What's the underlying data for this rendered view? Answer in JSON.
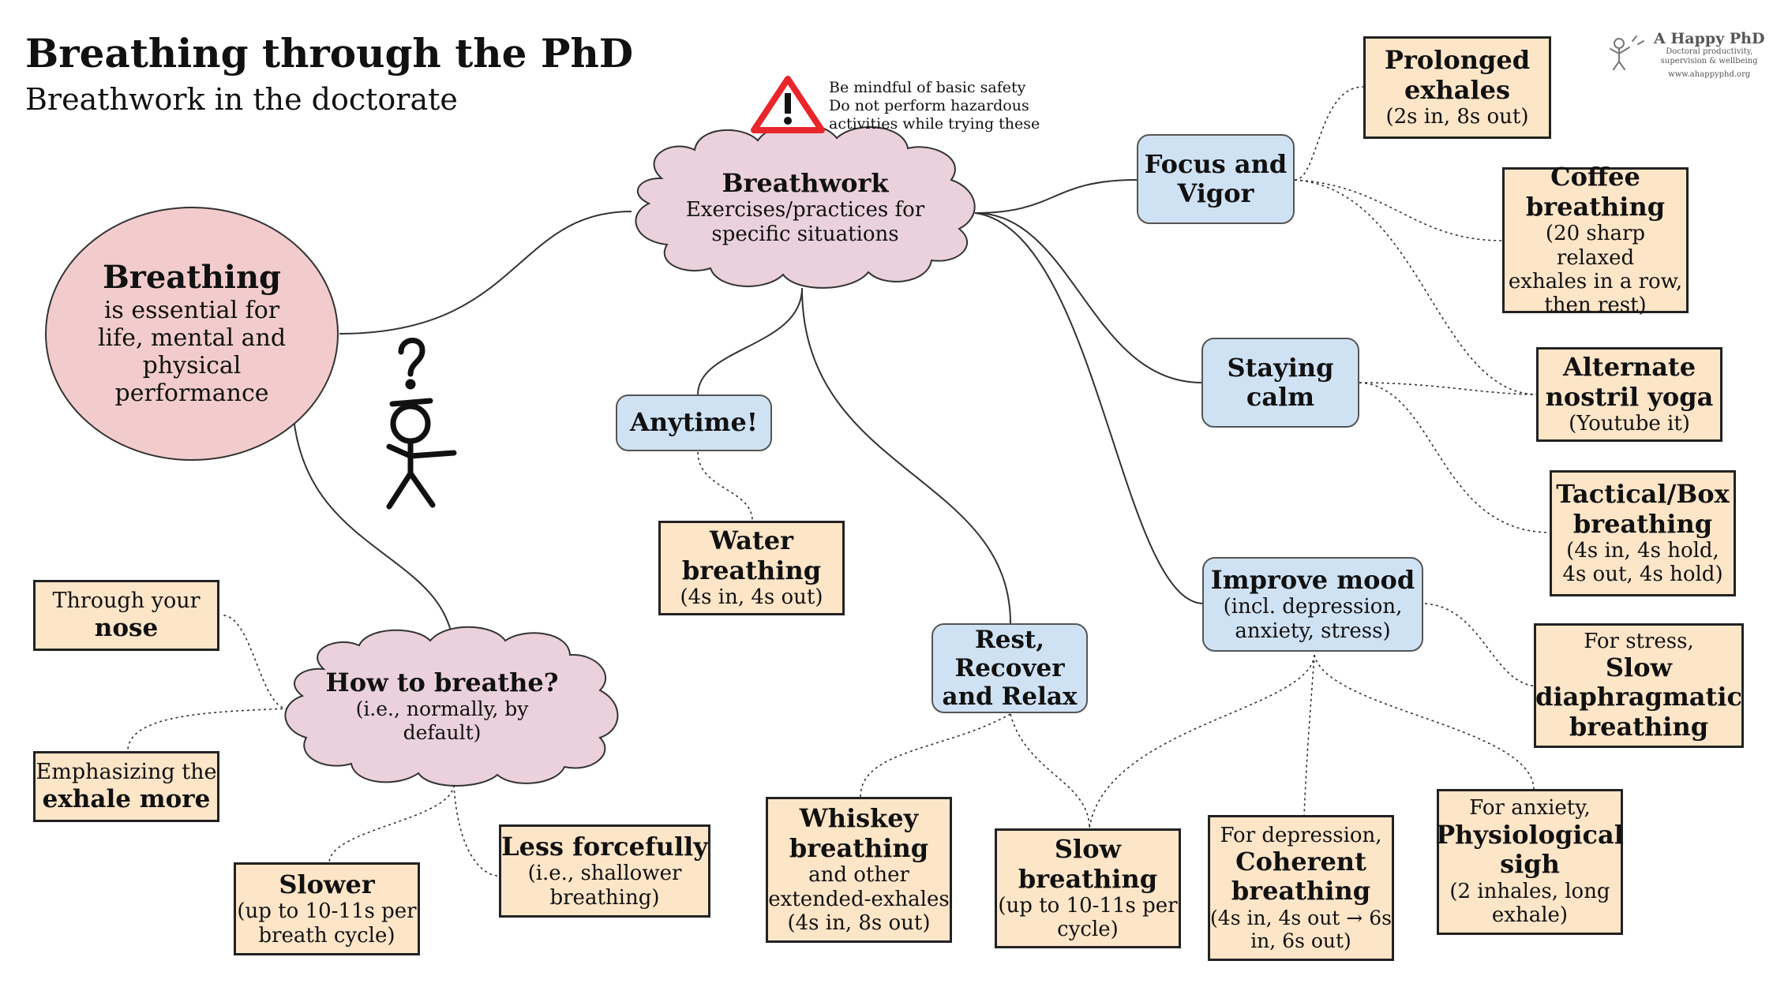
{
  "header": {
    "title": "Breathing through the PhD",
    "subtitle": "Breathwork in the doctorate"
  },
  "logo": {
    "name": "A Happy PhD",
    "tagline_1": "Doctoral productivity,",
    "tagline_2": "supervision & wellbeing",
    "url": "www.ahappyphd.org"
  },
  "warning": {
    "line_1": "Be mindful of basic safety",
    "line_2": "Do not perform hazardous",
    "line_3": "activities while trying these"
  },
  "nodes": {
    "breathing": {
      "title": "Breathing",
      "line_1": "is essential for",
      "line_2": "life, mental and",
      "line_3": "physical",
      "line_4": "performance"
    },
    "breathwork": {
      "title": "Breathwork",
      "line_1": "Exercises/practices for",
      "line_2": "specific situations"
    },
    "how": {
      "title": "How to breathe?",
      "line_1": "(i.e., normally, by",
      "line_2": "default)"
    },
    "nose": {
      "line_1": "Through your",
      "bold": "nose"
    },
    "exhale_more": {
      "line_1": "Emphasizing the",
      "bold": "exhale more"
    },
    "slower": {
      "title": "Slower",
      "line_1": "(up to 10-11s per",
      "line_2": "breath cycle)"
    },
    "less_forcefully": {
      "title": "Less forcefully",
      "line_1": "(i.e., shallower",
      "line_2": "breathing)"
    },
    "anytime": {
      "title": "Anytime!"
    },
    "water": {
      "title_1": "Water",
      "title_2": "breathing",
      "line_1": "(4s in, 4s out)"
    },
    "rest": {
      "line_1": "Rest,",
      "line_2": "Recover",
      "line_3": "and Relax"
    },
    "whiskey": {
      "title_1": "Whiskey",
      "title_2": "breathing",
      "line_1": "and other",
      "line_2": "extended-exhales",
      "line_3": "(4s in, 8s out)"
    },
    "slow": {
      "title_1": "Slow",
      "title_2": "breathing",
      "line_1": "(up to 10-11s per",
      "line_2": "cycle)"
    },
    "focus": {
      "line_1": "Focus and",
      "line_2": "Vigor"
    },
    "prolonged": {
      "title_1": "Prolonged",
      "title_2": "exhales",
      "line_1": "(2s in, 8s out)"
    },
    "coffee": {
      "title_1": "Coffee",
      "title_2": "breathing",
      "line_1": "(20 sharp relaxed",
      "line_2": "exhales in a row,",
      "line_3": "then rest)"
    },
    "calm": {
      "line_1": "Staying",
      "line_2": "calm"
    },
    "alternate": {
      "title_1": "Alternate",
      "title_2": "nostril yoga",
      "line_1": "(Youtube it)"
    },
    "tactical": {
      "title_1": "Tactical/Box",
      "title_2": "breathing",
      "line_1": "(4s in, 4s hold,",
      "line_2": "4s out, 4s hold)"
    },
    "mood": {
      "title": "Improve mood",
      "line_1": "(incl. depression,",
      "line_2": "anxiety, stress)"
    },
    "stress": {
      "line_1": "For stress,",
      "title_1": "Slow",
      "title_2": "diaphragmatic",
      "title_3": "breathing"
    },
    "depression": {
      "line_1": "For depression,",
      "title_1": "Coherent",
      "title_2": "breathing",
      "line_2": "(4s in, 4s out → 6s",
      "line_3": "in, 6s out)"
    },
    "anxiety": {
      "line_1": "For anxiety,",
      "title_1": "Physiological",
      "title_2": "sigh",
      "line_2": "(2 inhales, long",
      "line_3": "exhale)"
    }
  },
  "colors": {
    "circle_fill": "#f2cccc",
    "cloud_fill": "#ead1dc",
    "blue_fill": "#cfe2f3",
    "orange_fill": "#fde5c8",
    "warning_red": "#e8262b"
  }
}
